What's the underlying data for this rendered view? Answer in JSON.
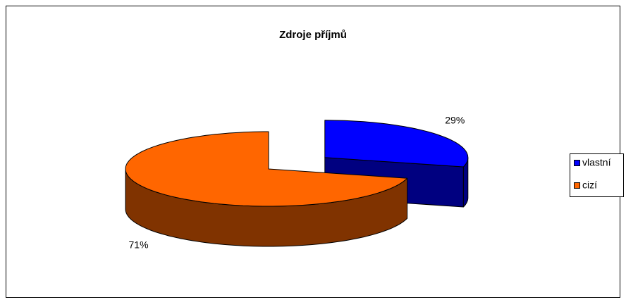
{
  "chart_data": {
    "type": "pie",
    "title": "Zdroje příjmů",
    "categories": [
      "vlastní",
      "cizí"
    ],
    "values": [
      29,
      71
    ],
    "value_labels": [
      "29%",
      "71%"
    ],
    "colors": [
      "#0000ff",
      "#ff6600"
    ],
    "side_colors": [
      "#000080",
      "#803300"
    ],
    "exploded": [
      0
    ],
    "legend": "right"
  }
}
